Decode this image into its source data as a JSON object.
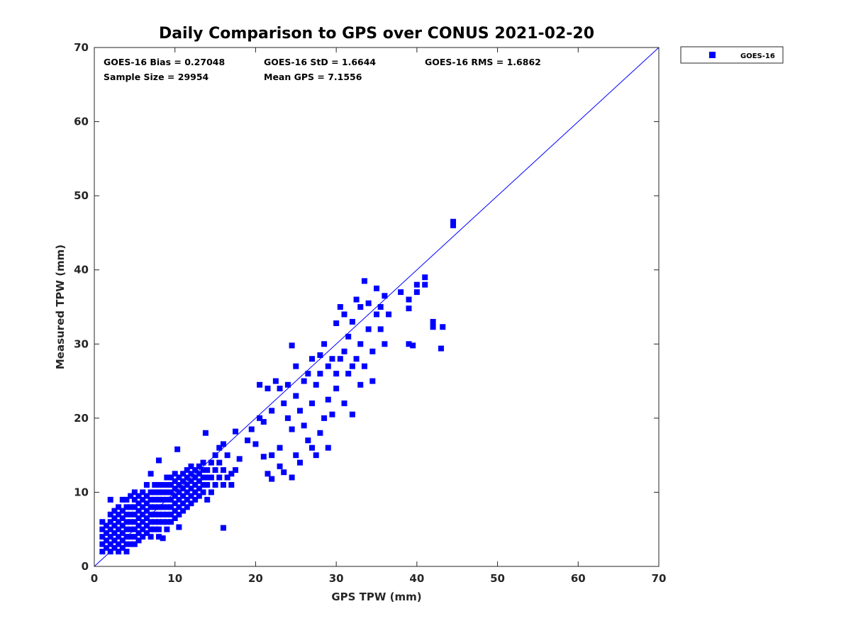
{
  "chart_data": {
    "type": "scatter",
    "title": "Daily Comparison to GPS over CONUS 2021-02-20",
    "xlabel": "GPS TPW (mm)",
    "ylabel": "Measured TPW (mm)",
    "xlim": [
      0,
      70
    ],
    "ylim": [
      0,
      70
    ],
    "xticks": [
      "0",
      "10",
      "20",
      "30",
      "40",
      "50",
      "60",
      "70"
    ],
    "yticks": [
      "0",
      "10",
      "20",
      "30",
      "40",
      "50",
      "60",
      "70"
    ],
    "grid": false,
    "legend": {
      "placement": "outside-top-right",
      "entries": [
        "GOES-16"
      ]
    },
    "reference_line": {
      "from": [
        0,
        0
      ],
      "to": [
        70,
        70
      ],
      "color": "#0000ff"
    },
    "stats": {
      "bias": "GOES-16 Bias = 0.27048",
      "std": "GOES-16 StD = 1.6644",
      "rms": "GOES-16 RMS = 1.6862",
      "sample_size": "Sample Size = 29954",
      "mean_gps": "Mean GPS = 7.1556"
    },
    "series": [
      {
        "name": "GOES-16",
        "color": "#0000ff",
        "marker": "square",
        "points": [
          [
            1,
            2
          ],
          [
            1,
            3
          ],
          [
            1,
            4
          ],
          [
            1,
            5
          ],
          [
            1,
            6
          ],
          [
            1.5,
            2.5
          ],
          [
            1.5,
            3.5
          ],
          [
            1.5,
            4.5
          ],
          [
            1.5,
            5.5
          ],
          [
            2,
            2
          ],
          [
            2,
            3
          ],
          [
            2,
            4
          ],
          [
            2,
            5
          ],
          [
            2,
            6
          ],
          [
            2,
            7
          ],
          [
            2,
            9
          ],
          [
            2.5,
            2.5
          ],
          [
            2.5,
            3.5
          ],
          [
            2.5,
            4.5
          ],
          [
            2.5,
            5.5
          ],
          [
            2.5,
            6.5
          ],
          [
            2.5,
            7.5
          ],
          [
            3,
            2
          ],
          [
            3,
            3
          ],
          [
            3,
            4
          ],
          [
            3,
            5
          ],
          [
            3,
            6
          ],
          [
            3,
            7
          ],
          [
            3,
            8
          ],
          [
            3.5,
            2.5
          ],
          [
            3.5,
            3.5
          ],
          [
            3.5,
            4.5
          ],
          [
            3.5,
            5.5
          ],
          [
            3.5,
            6.5
          ],
          [
            3.5,
            7.5
          ],
          [
            3.5,
            9
          ],
          [
            4,
            2
          ],
          [
            4,
            3
          ],
          [
            4,
            4
          ],
          [
            4,
            5
          ],
          [
            4,
            6
          ],
          [
            4,
            7
          ],
          [
            4,
            8
          ],
          [
            4,
            9
          ],
          [
            4.5,
            3
          ],
          [
            4.5,
            4
          ],
          [
            4.5,
            5
          ],
          [
            4.5,
            6
          ],
          [
            4.5,
            7
          ],
          [
            4.5,
            8
          ],
          [
            4.5,
            9.5
          ],
          [
            5,
            3
          ],
          [
            5,
            4
          ],
          [
            5,
            5
          ],
          [
            5,
            6
          ],
          [
            5,
            7
          ],
          [
            5,
            8
          ],
          [
            5,
            9
          ],
          [
            5,
            10
          ],
          [
            5.5,
            3.5
          ],
          [
            5.5,
            4.5
          ],
          [
            5.5,
            5.5
          ],
          [
            5.5,
            6.5
          ],
          [
            5.5,
            7.5
          ],
          [
            5.5,
            8.5
          ],
          [
            5.5,
            9.5
          ],
          [
            6,
            4
          ],
          [
            6,
            5
          ],
          [
            6,
            6
          ],
          [
            6,
            7
          ],
          [
            6,
            8
          ],
          [
            6,
            9
          ],
          [
            6,
            10
          ],
          [
            6.5,
            4.5
          ],
          [
            6.5,
            5.5
          ],
          [
            6.5,
            6.5
          ],
          [
            6.5,
            7.5
          ],
          [
            6.5,
            8.5
          ],
          [
            6.5,
            9.5
          ],
          [
            6.5,
            11
          ],
          [
            7,
            4
          ],
          [
            7,
            5
          ],
          [
            7,
            6
          ],
          [
            7,
            7
          ],
          [
            7,
            8
          ],
          [
            7,
            9
          ],
          [
            7,
            10
          ],
          [
            7,
            12.5
          ],
          [
            7.5,
            5
          ],
          [
            7.5,
            6
          ],
          [
            7.5,
            7
          ],
          [
            7.5,
            8
          ],
          [
            7.5,
            9
          ],
          [
            7.5,
            10
          ],
          [
            7.5,
            11
          ],
          [
            8,
            4
          ],
          [
            8,
            5
          ],
          [
            8,
            6
          ],
          [
            8,
            7
          ],
          [
            8,
            8
          ],
          [
            8,
            9
          ],
          [
            8,
            10
          ],
          [
            8,
            11
          ],
          [
            8,
            14.3
          ],
          [
            8.5,
            3.8
          ],
          [
            8.5,
            6
          ],
          [
            8.5,
            7
          ],
          [
            8.5,
            8
          ],
          [
            8.5,
            9
          ],
          [
            8.5,
            10
          ],
          [
            8.5,
            11
          ],
          [
            9,
            5
          ],
          [
            9,
            6
          ],
          [
            9,
            7
          ],
          [
            9,
            8
          ],
          [
            9,
            9
          ],
          [
            9,
            10
          ],
          [
            9,
            11
          ],
          [
            9,
            12
          ],
          [
            9.5,
            6
          ],
          [
            9.5,
            7
          ],
          [
            9.5,
            8
          ],
          [
            9.5,
            9
          ],
          [
            9.5,
            10
          ],
          [
            9.5,
            11
          ],
          [
            9.5,
            12
          ],
          [
            10,
            6.5
          ],
          [
            10,
            7.5
          ],
          [
            10,
            8.5
          ],
          [
            10,
            9.5
          ],
          [
            10,
            10.5
          ],
          [
            10,
            11.5
          ],
          [
            10,
            12.5
          ],
          [
            10.3,
            15.8
          ],
          [
            10.5,
            5.3
          ],
          [
            10.5,
            7
          ],
          [
            10.5,
            8
          ],
          [
            10.5,
            9
          ],
          [
            10.5,
            10
          ],
          [
            10.5,
            11
          ],
          [
            10.5,
            12
          ],
          [
            11,
            7.5
          ],
          [
            11,
            8.5
          ],
          [
            11,
            9.5
          ],
          [
            11,
            10.5
          ],
          [
            11,
            11.5
          ],
          [
            11,
            12.5
          ],
          [
            11.5,
            8
          ],
          [
            11.5,
            9
          ],
          [
            11.5,
            10
          ],
          [
            11.5,
            11
          ],
          [
            11.5,
            12
          ],
          [
            11.5,
            13
          ],
          [
            12,
            8.5
          ],
          [
            12,
            9.5
          ],
          [
            12,
            10.5
          ],
          [
            12,
            11.5
          ],
          [
            12,
            12.5
          ],
          [
            12,
            13.5
          ],
          [
            12.5,
            9
          ],
          [
            12.5,
            10
          ],
          [
            12.5,
            11
          ],
          [
            12.5,
            12
          ],
          [
            12.5,
            13
          ],
          [
            13,
            9.5
          ],
          [
            13,
            10.5
          ],
          [
            13,
            11.5
          ],
          [
            13,
            12.5
          ],
          [
            13,
            13.5
          ],
          [
            13.5,
            10
          ],
          [
            13.5,
            11
          ],
          [
            13.5,
            12
          ],
          [
            13.5,
            13
          ],
          [
            13.5,
            14
          ],
          [
            13.8,
            18
          ],
          [
            14,
            9
          ],
          [
            14,
            11
          ],
          [
            14,
            12
          ],
          [
            14,
            13
          ],
          [
            14.5,
            10
          ],
          [
            14.5,
            12
          ],
          [
            14.5,
            14
          ],
          [
            15,
            11
          ],
          [
            15,
            13
          ],
          [
            15,
            15
          ],
          [
            15.5,
            12
          ],
          [
            15.5,
            14
          ],
          [
            15.5,
            16
          ],
          [
            16,
            5.2
          ],
          [
            16,
            11
          ],
          [
            16,
            13
          ],
          [
            16,
            16.5
          ],
          [
            16.5,
            12
          ],
          [
            16.5,
            15
          ],
          [
            17,
            11
          ],
          [
            17,
            12.5
          ],
          [
            17.5,
            13
          ],
          [
            17.5,
            18.2
          ],
          [
            18,
            14.5
          ],
          [
            19,
            17
          ],
          [
            19.5,
            18.5
          ],
          [
            20,
            16.5
          ],
          [
            20.5,
            24.5
          ],
          [
            20.5,
            20
          ],
          [
            21,
            14.8
          ],
          [
            21,
            19.5
          ],
          [
            21.5,
            12.5
          ],
          [
            21.5,
            24
          ],
          [
            22,
            11.8
          ],
          [
            22,
            15
          ],
          [
            22,
            21
          ],
          [
            22.5,
            25
          ],
          [
            23,
            13.5
          ],
          [
            23,
            16
          ],
          [
            23,
            24
          ],
          [
            23.5,
            12.7
          ],
          [
            23.5,
            22
          ],
          [
            24,
            20
          ],
          [
            24,
            24.5
          ],
          [
            24.5,
            18.5
          ],
          [
            24.5,
            29.8
          ],
          [
            24.5,
            12
          ],
          [
            25,
            15
          ],
          [
            25,
            23
          ],
          [
            25,
            27
          ],
          [
            25.5,
            14
          ],
          [
            25.5,
            21
          ],
          [
            26,
            19
          ],
          [
            26,
            25
          ],
          [
            26.5,
            17
          ],
          [
            26.5,
            26
          ],
          [
            27,
            16
          ],
          [
            27,
            22
          ],
          [
            27,
            28
          ],
          [
            27.5,
            15
          ],
          [
            27.5,
            24.5
          ],
          [
            28,
            18
          ],
          [
            28,
            26
          ],
          [
            28,
            28.5
          ],
          [
            28.5,
            20
          ],
          [
            28.5,
            30
          ],
          [
            29,
            16
          ],
          [
            29,
            27
          ],
          [
            29,
            22.5
          ],
          [
            29.5,
            20.5
          ],
          [
            29.5,
            28
          ],
          [
            30,
            24
          ],
          [
            30,
            32.8
          ],
          [
            30,
            26
          ],
          [
            30.5,
            35
          ],
          [
            30.5,
            28
          ],
          [
            31,
            22
          ],
          [
            31,
            34
          ],
          [
            31,
            29
          ],
          [
            31.5,
            26
          ],
          [
            31.5,
            31
          ],
          [
            32,
            27
          ],
          [
            32,
            33
          ],
          [
            32,
            20.5
          ],
          [
            32.5,
            36
          ],
          [
            32.5,
            28
          ],
          [
            33,
            24.5
          ],
          [
            33,
            35
          ],
          [
            33,
            30
          ],
          [
            33.5,
            38.5
          ],
          [
            33.5,
            27
          ],
          [
            34,
            32
          ],
          [
            34,
            35.5
          ],
          [
            34.5,
            25
          ],
          [
            34.5,
            29
          ],
          [
            35,
            34
          ],
          [
            35,
            37.5
          ],
          [
            35.5,
            32
          ],
          [
            35.5,
            35
          ],
          [
            36,
            36.5
          ],
          [
            36,
            30
          ],
          [
            36.5,
            34
          ],
          [
            38,
            37
          ],
          [
            39,
            36
          ],
          [
            39,
            34.8
          ],
          [
            39,
            30
          ],
          [
            39.5,
            29.8
          ],
          [
            40,
            38
          ],
          [
            40,
            37
          ],
          [
            41,
            38
          ],
          [
            41,
            39
          ],
          [
            42,
            32.3
          ],
          [
            42,
            33
          ],
          [
            43,
            29.4
          ],
          [
            43.2,
            32.3
          ],
          [
            44.5,
            46.5
          ],
          [
            44.5,
            46
          ]
        ]
      }
    ]
  }
}
